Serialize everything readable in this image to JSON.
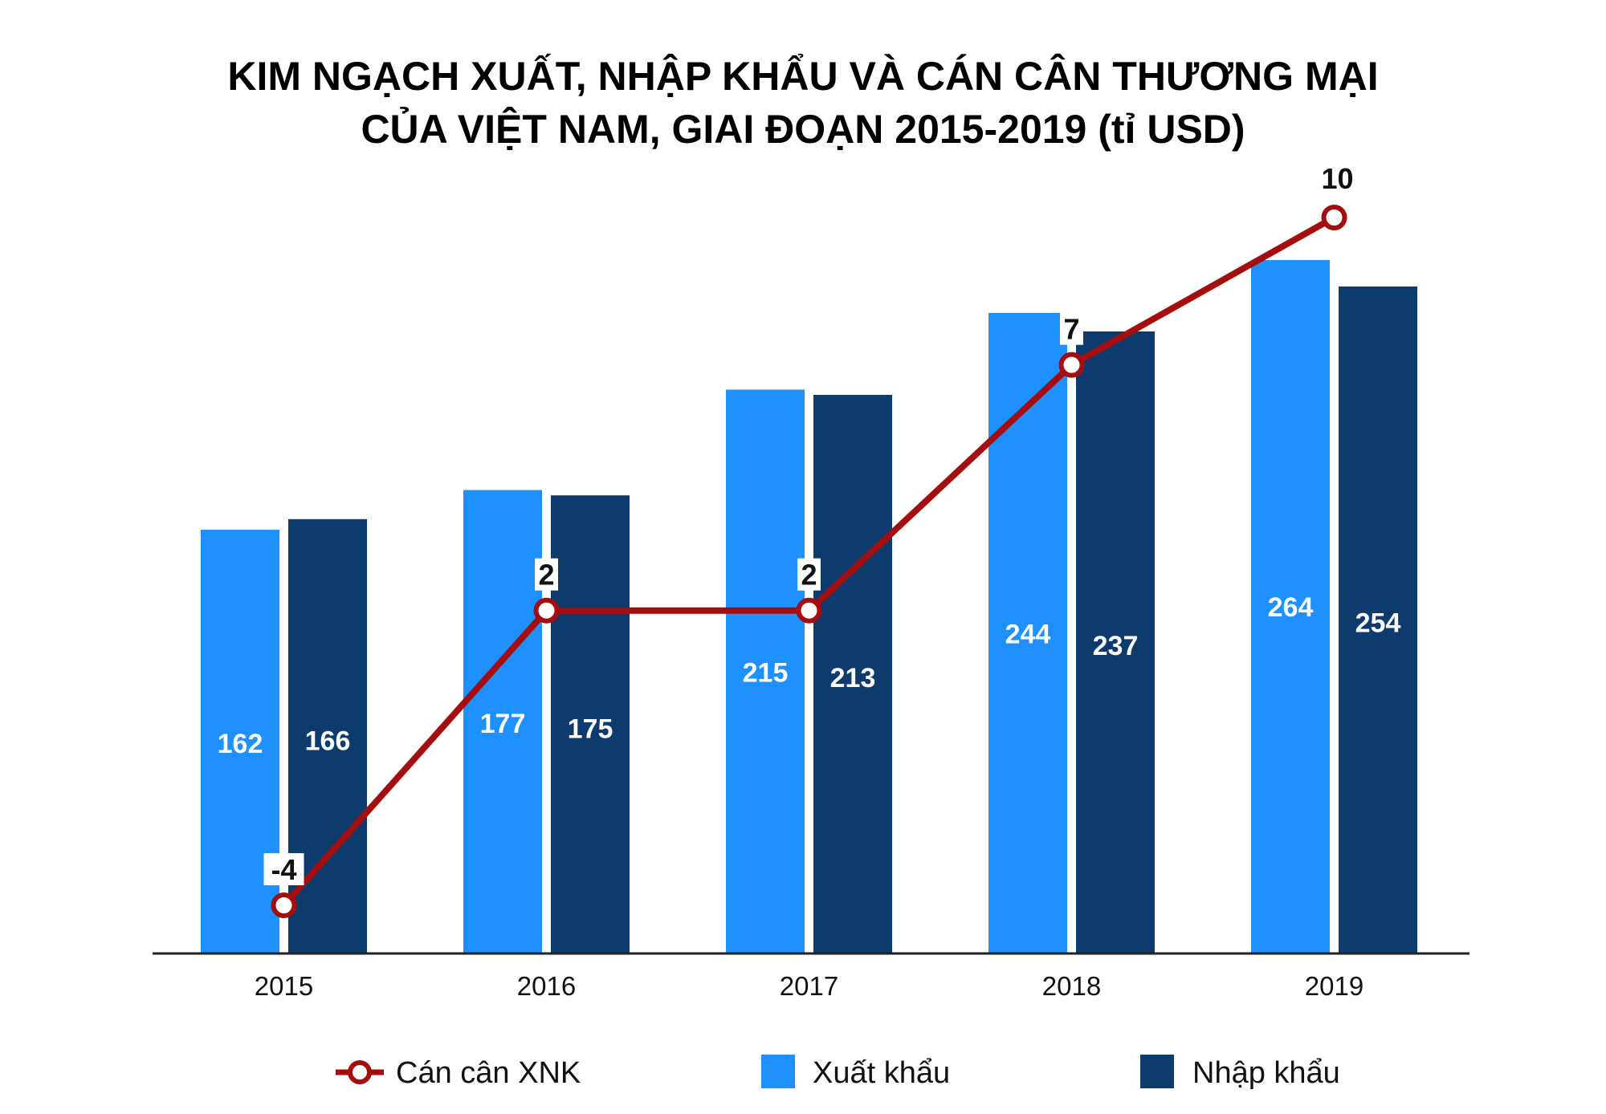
{
  "title_line1": "KIM NGẠCH XUẤT, NHẬP KHẨU VÀ CÁN CÂN THƯƠNG MẠI",
  "title_line2": "CỦA VIỆT NAM, GIAI ĐOẠN 2015-2019 (tỉ USD)",
  "colors": {
    "export": "#1e90ff",
    "import": "#0d3b6e",
    "balance": "#a50e0e"
  },
  "chart_data": {
    "type": "bar",
    "categories": [
      "2015",
      "2016",
      "2017",
      "2018",
      "2019"
    ],
    "series": [
      {
        "name": "Xuất khẩu",
        "kind": "bar",
        "values": [
          162,
          177,
          215,
          244,
          264
        ]
      },
      {
        "name": "Nhập khẩu",
        "kind": "bar",
        "values": [
          166,
          175,
          213,
          237,
          254
        ]
      },
      {
        "name": "Cán cân XNK",
        "kind": "line",
        "values": [
          -4,
          2,
          2,
          7,
          10
        ]
      }
    ],
    "bar_ylim": [
      0,
      264
    ],
    "line_ylim": [
      -4,
      10
    ],
    "legend": [
      "Cán cân XNK",
      "Xuất khẩu",
      "Nhập khẩu"
    ],
    "legend_position": "bottom",
    "grid": false
  }
}
